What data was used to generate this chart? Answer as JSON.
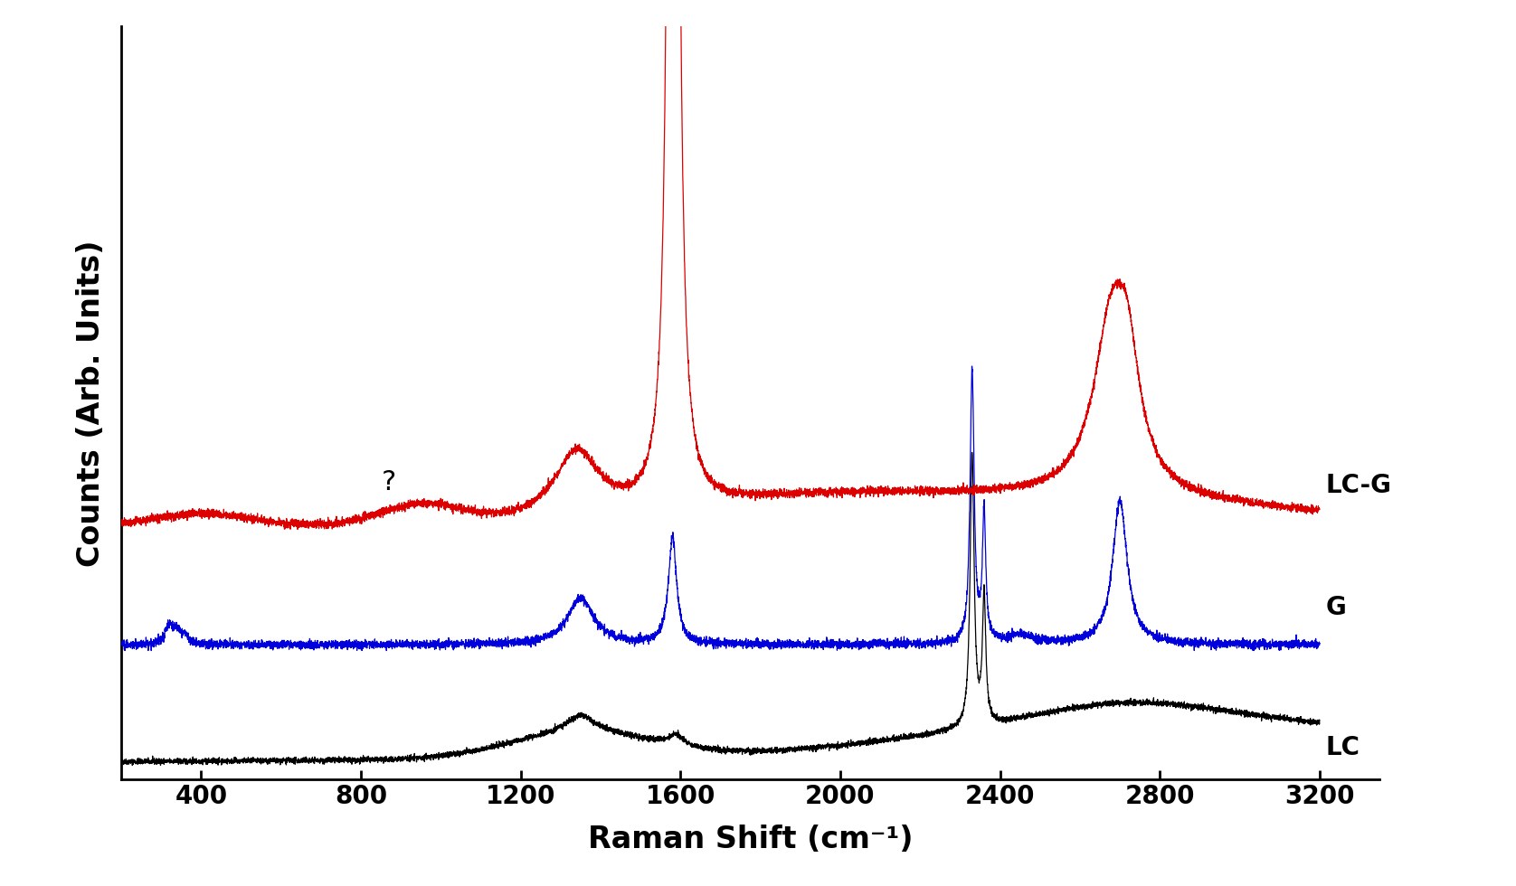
{
  "x_min": 200,
  "x_max": 3200,
  "xlabel": "Raman Shift (cm⁻¹)",
  "ylabel": "Counts (Arb. Units)",
  "xticks": [
    400,
    800,
    1200,
    1600,
    2000,
    2400,
    2800,
    3200
  ],
  "background_color": "#ffffff",
  "label_LC": "LC",
  "label_G": "G",
  "label_LCG": "LC-G",
  "colors": {
    "LC": "#000000",
    "G": "#0000dd",
    "LCG": "#dd0000"
  },
  "offsets": {
    "LC": 0.02,
    "G": 0.18,
    "LCG": 0.34
  },
  "ylim": [
    0.0,
    1.05
  ],
  "xlim": [
    200,
    3350
  ]
}
